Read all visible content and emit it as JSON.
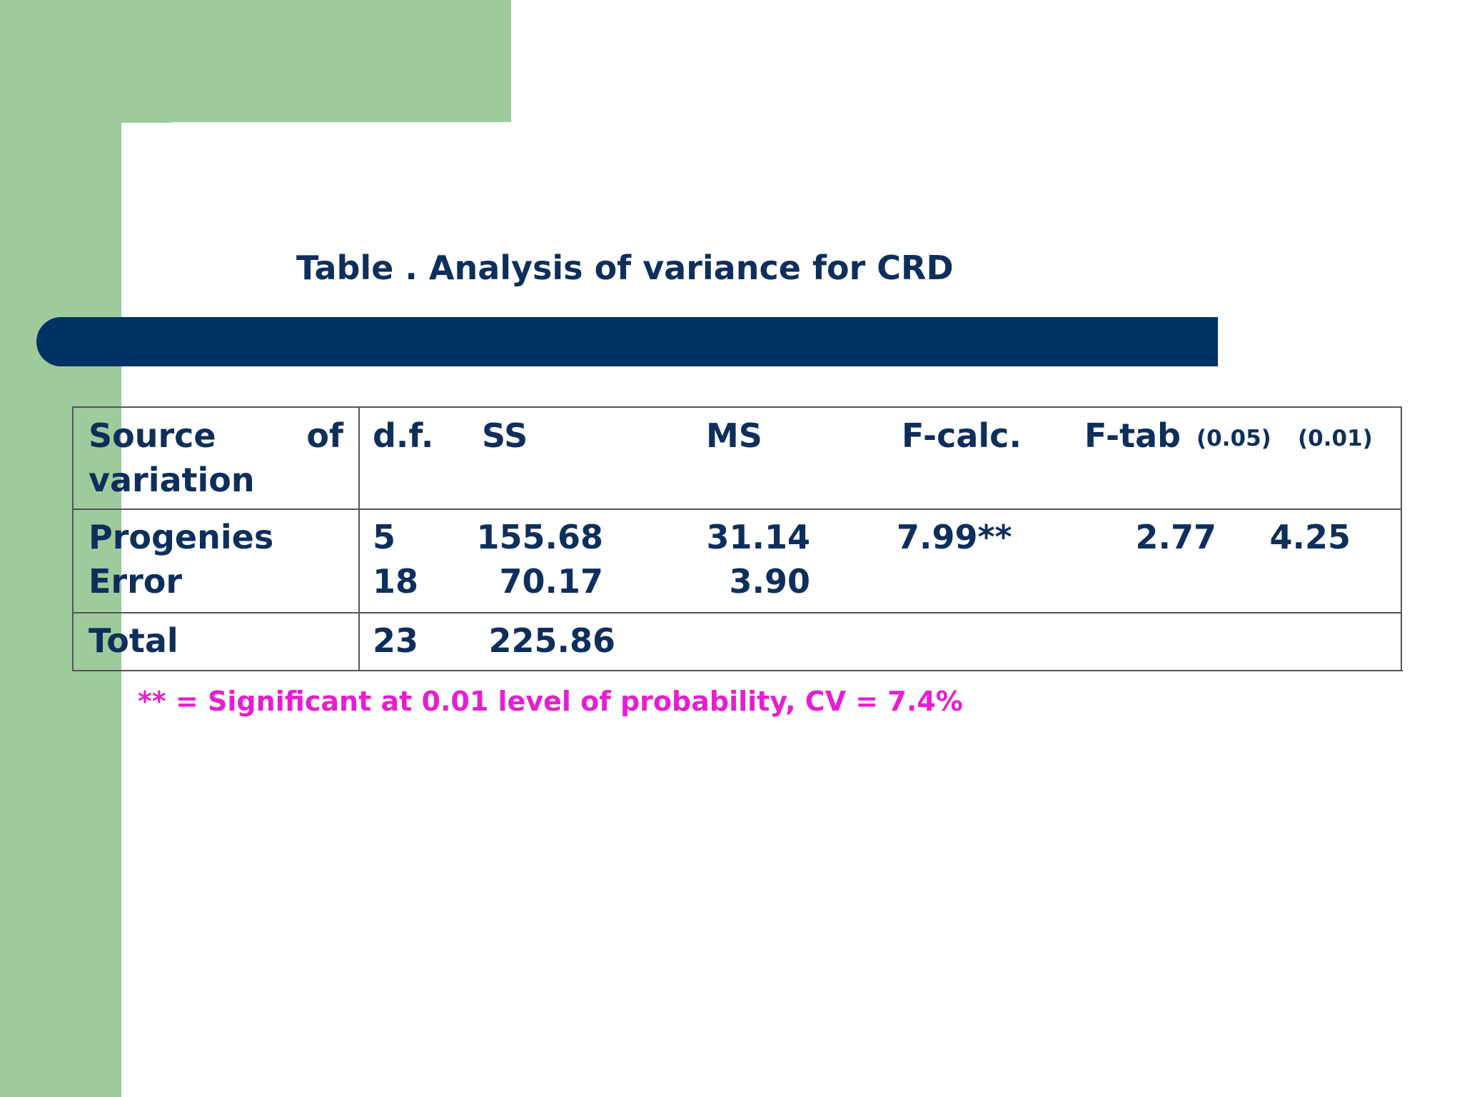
{
  "title": "Table . Analysis of variance for CRD",
  "table": {
    "header": [
      "Source of variation",
      "d.f.",
      "SS",
      "MS",
      "F-calc.",
      "F-tab",
      "(0.05)",
      "(0.01)"
    ],
    "rows": [
      [
        "Progenies",
        "5",
        "155.68",
        "31.14",
        "7.99**",
        "2.77",
        "4.25"
      ],
      [
        "Error",
        "18",
        "70.17",
        "3.90"
      ],
      [
        "Total",
        "23",
        "225.86"
      ]
    ]
  },
  "footnote": "** = Significant at 0.01 level of probability, CV = 7.4%"
}
